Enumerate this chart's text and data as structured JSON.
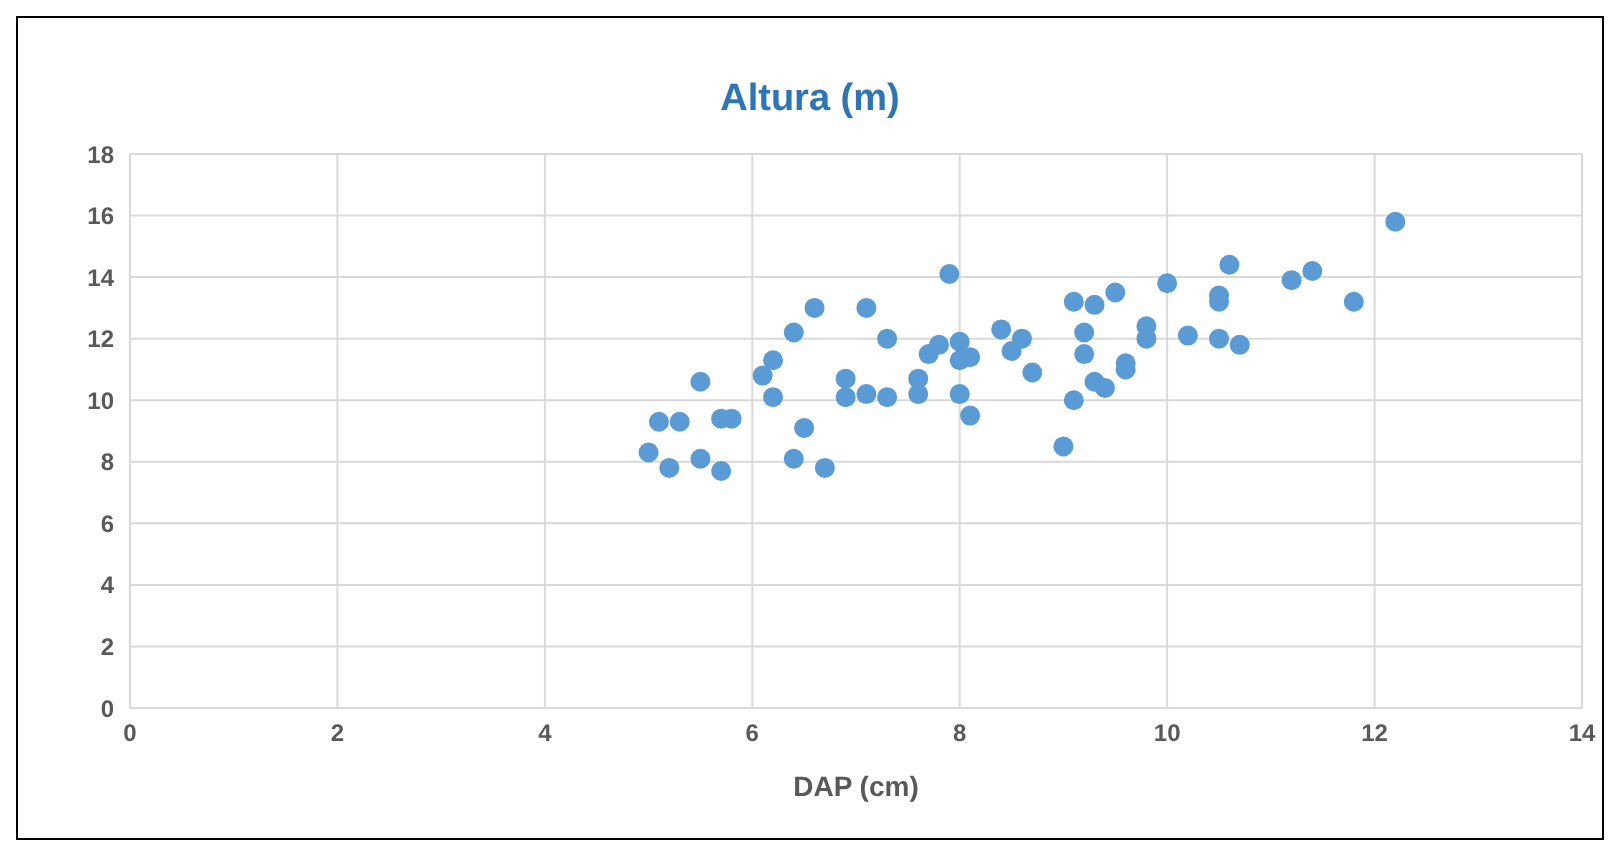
{
  "chart_data": {
    "type": "scatter",
    "title": "Altura (m)",
    "xlabel": "DAP (cm)",
    "xlim": [
      0,
      14
    ],
    "xticks": [
      0,
      2,
      4,
      6,
      8,
      10,
      12,
      14
    ],
    "ylim": [
      0,
      18
    ],
    "yticks": [
      0,
      2,
      4,
      6,
      8,
      10,
      12,
      14,
      16,
      18
    ],
    "grid": true,
    "legend": false,
    "marker": "circle",
    "series": [
      {
        "color": "#5b9bd5",
        "x": [
          5.0,
          5.1,
          5.2,
          5.3,
          5.5,
          5.5,
          5.7,
          5.7,
          5.8,
          6.1,
          6.2,
          6.2,
          6.4,
          6.4,
          6.5,
          6.6,
          6.7,
          6.9,
          6.9,
          7.1,
          7.1,
          7.3,
          7.3,
          7.6,
          7.6,
          7.7,
          7.8,
          7.9,
          8.0,
          8.0,
          8.0,
          8.1,
          8.1,
          8.4,
          8.5,
          8.6,
          8.7,
          9.0,
          9.1,
          9.1,
          9.2,
          9.2,
          9.3,
          9.3,
          9.4,
          9.5,
          9.6,
          9.6,
          9.8,
          9.8,
          10.0,
          10.2,
          10.5,
          10.5,
          10.5,
          10.6,
          10.7,
          11.2,
          11.4,
          11.8,
          12.2
        ],
        "values": [
          8.3,
          9.3,
          7.8,
          9.3,
          10.6,
          8.1,
          9.4,
          7.7,
          9.4,
          10.8,
          11.3,
          10.1,
          12.2,
          8.1,
          9.1,
          13.0,
          7.8,
          10.7,
          10.1,
          13.0,
          10.2,
          12.0,
          10.1,
          10.7,
          10.2,
          11.5,
          11.8,
          14.1,
          11.9,
          10.2,
          11.3,
          9.5,
          11.4,
          12.3,
          11.6,
          12.0,
          10.9,
          8.5,
          10.0,
          13.2,
          12.2,
          11.5,
          13.1,
          10.6,
          10.4,
          13.5,
          11.0,
          11.2,
          12.4,
          12.0,
          13.8,
          12.1,
          13.4,
          13.2,
          12.0,
          14.4,
          11.8,
          13.9,
          14.2,
          13.2,
          15.8
        ]
      }
    ]
  }
}
